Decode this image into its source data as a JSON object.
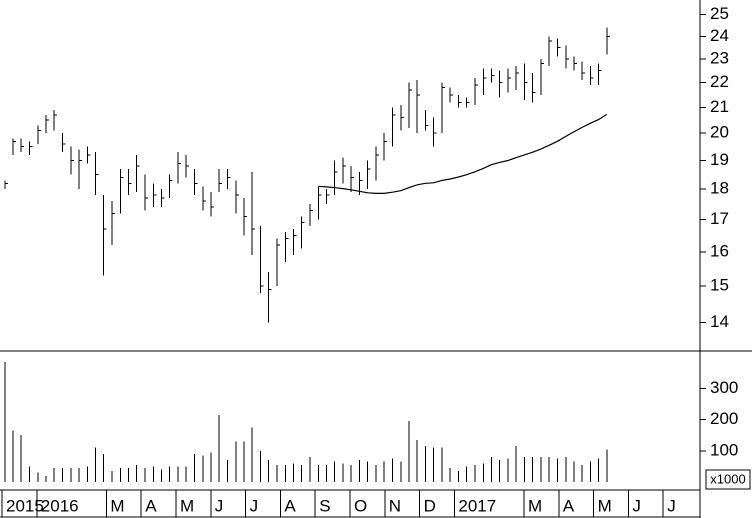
{
  "chart_data": [
    {
      "type": "ohlc",
      "log_scale": true,
      "color": "#000000",
      "ma_color": "#000000",
      "x": [
        0.08,
        0.32,
        0.55,
        0.79,
        1.03,
        1.27,
        1.5,
        1.74,
        1.98,
        2.21,
        2.45,
        2.69,
        2.92,
        3.16,
        3.4,
        3.64,
        3.87,
        4.11,
        4.35,
        4.58,
        4.82,
        5.06,
        5.29,
        5.53,
        5.77,
        6.01,
        6.24,
        6.48,
        6.72,
        6.95,
        7.19,
        7.43,
        7.66,
        7.9,
        8.14,
        8.38,
        8.61,
        8.85,
        9.09,
        9.32,
        9.56,
        9.8,
        10.03,
        10.27,
        10.51,
        10.75,
        10.98,
        11.22,
        11.46,
        11.69,
        11.93,
        12.17,
        12.4,
        12.64,
        12.88,
        13.12,
        13.35,
        13.59,
        13.83,
        14.06,
        14.3,
        14.54,
        14.77,
        15.01,
        15.25,
        15.49,
        15.72,
        15.96,
        16.2,
        16.43,
        16.67,
        16.91,
        17.14,
        17.38
      ],
      "high": [
        18.3,
        19.8,
        19.8,
        19.7,
        20.3,
        20.7,
        20.9,
        20.0,
        19.5,
        19.4,
        19.5,
        19.3,
        17.8,
        17.6,
        18.7,
        18.7,
        19.2,
        18.5,
        18.2,
        18.0,
        18.5,
        19.3,
        19.2,
        18.7,
        18.1,
        17.9,
        18.7,
        18.7,
        18.3,
        17.7,
        18.6,
        16.8,
        15.4,
        16.4,
        16.6,
        16.7,
        17.1,
        17.5,
        18.1,
        18.0,
        19.0,
        19.1,
        18.8,
        18.6,
        19.0,
        19.5,
        20.0,
        21.0,
        21.1,
        22.0,
        22.1,
        20.9,
        20.6,
        22.0,
        21.8,
        21.5,
        21.4,
        22.2,
        22.6,
        22.6,
        22.5,
        22.6,
        22.7,
        22.8,
        22.4,
        23.0,
        24.0,
        23.9,
        23.6,
        23.1,
        22.9,
        22.7,
        22.8,
        24.4
      ],
      "low": [
        18.0,
        19.2,
        19.3,
        19.2,
        19.6,
        20.0,
        20.1,
        19.3,
        18.5,
        18.0,
        18.9,
        17.8,
        15.3,
        16.2,
        17.2,
        17.8,
        17.9,
        17.3,
        17.4,
        17.4,
        17.7,
        18.2,
        18.4,
        17.8,
        17.3,
        17.1,
        17.9,
        18.0,
        17.2,
        16.5,
        15.9,
        14.8,
        14.0,
        15.0,
        15.7,
        15.9,
        16.1,
        16.8,
        17.0,
        17.5,
        17.8,
        18.2,
        17.9,
        17.8,
        18.0,
        18.3,
        19.0,
        19.5,
        20.1,
        20.2,
        20.0,
        20.1,
        19.5,
        20.0,
        21.2,
        21.0,
        21.0,
        21.1,
        21.5,
        22.0,
        21.4,
        21.6,
        21.7,
        21.3,
        21.2,
        21.5,
        22.7,
        23.1,
        22.6,
        22.5,
        22.1,
        21.9,
        21.9,
        23.2
      ],
      "close": [
        18.2,
        19.7,
        19.5,
        19.5,
        20.1,
        20.5,
        20.7,
        19.6,
        19.0,
        19.0,
        19.2,
        18.5,
        16.7,
        17.2,
        18.4,
        18.2,
        18.8,
        17.7,
        17.8,
        17.7,
        18.3,
        18.9,
        18.8,
        18.2,
        17.6,
        17.4,
        18.2,
        18.4,
        17.8,
        17.1,
        16.7,
        15.0,
        14.9,
        16.2,
        16.4,
        16.5,
        16.9,
        17.3,
        17.8,
        17.8,
        18.6,
        18.8,
        18.4,
        18.3,
        18.7,
        19.2,
        19.7,
        20.7,
        20.6,
        21.7,
        21.5,
        20.3,
        20.0,
        21.8,
        21.5,
        21.2,
        21.2,
        21.9,
        22.2,
        22.3,
        22.0,
        22.2,
        22.4,
        22.0,
        21.6,
        22.8,
        23.8,
        23.5,
        23.0,
        22.8,
        22.4,
        22.2,
        22.5,
        24.0
      ],
      "moving_average": [
        null,
        null,
        null,
        null,
        null,
        null,
        null,
        null,
        null,
        null,
        null,
        null,
        null,
        null,
        null,
        null,
        null,
        null,
        null,
        null,
        null,
        null,
        null,
        null,
        null,
        null,
        null,
        null,
        null,
        null,
        null,
        null,
        null,
        null,
        null,
        null,
        null,
        null,
        18.1,
        18.08,
        18.05,
        18.02,
        17.98,
        17.93,
        17.88,
        17.86,
        17.86,
        17.9,
        17.95,
        18.05,
        18.15,
        18.2,
        18.22,
        18.3,
        18.35,
        18.42,
        18.5,
        18.6,
        18.72,
        18.85,
        18.93,
        19.0,
        19.1,
        19.2,
        19.3,
        19.42,
        19.55,
        19.7,
        19.88,
        20.05,
        20.22,
        20.38,
        20.52,
        20.72
      ],
      "xlim": [
        0,
        20
      ],
      "xticks": [
        {
          "value": 0,
          "label": "2015"
        },
        {
          "value": 1,
          "label": "2016"
        },
        {
          "value": 3,
          "label": "M"
        },
        {
          "value": 4,
          "label": "A"
        },
        {
          "value": 5,
          "label": "M"
        },
        {
          "value": 6,
          "label": "J"
        },
        {
          "value": 7,
          "label": "J"
        },
        {
          "value": 8,
          "label": "A"
        },
        {
          "value": 9,
          "label": "S"
        },
        {
          "value": 10,
          "label": "O"
        },
        {
          "value": 11,
          "label": "N"
        },
        {
          "value": 12,
          "label": "D"
        },
        {
          "value": 13,
          "label": "2017"
        },
        {
          "value": 15,
          "label": "M"
        },
        {
          "value": 16,
          "label": "A"
        },
        {
          "value": 17,
          "label": "M"
        },
        {
          "value": 18,
          "label": "J"
        },
        {
          "value": 19,
          "label": "J"
        }
      ],
      "ylim": [
        13.3,
        25.7
      ],
      "yticks": [
        14,
        15,
        16,
        17,
        18,
        19,
        20,
        21,
        22,
        23,
        24,
        25
      ]
    },
    {
      "type": "bar",
      "color": "#000000",
      "unit_label": "x1000",
      "values": [
        385,
        165,
        150,
        50,
        30,
        20,
        45,
        45,
        45,
        45,
        50,
        110,
        90,
        35,
        45,
        45,
        55,
        45,
        50,
        40,
        50,
        50,
        50,
        90,
        85,
        95,
        215,
        70,
        130,
        130,
        175,
        100,
        70,
        55,
        55,
        60,
        55,
        80,
        55,
        55,
        65,
        60,
        55,
        70,
        65,
        55,
        65,
        75,
        65,
        195,
        135,
        115,
        110,
        110,
        45,
        35,
        50,
        55,
        60,
        80,
        70,
        75,
        115,
        80,
        80,
        80,
        80,
        75,
        80,
        65,
        55,
        65,
        75,
        105
      ],
      "ylim": [
        0,
        420
      ],
      "yticks": [
        100,
        200,
        300
      ]
    }
  ]
}
